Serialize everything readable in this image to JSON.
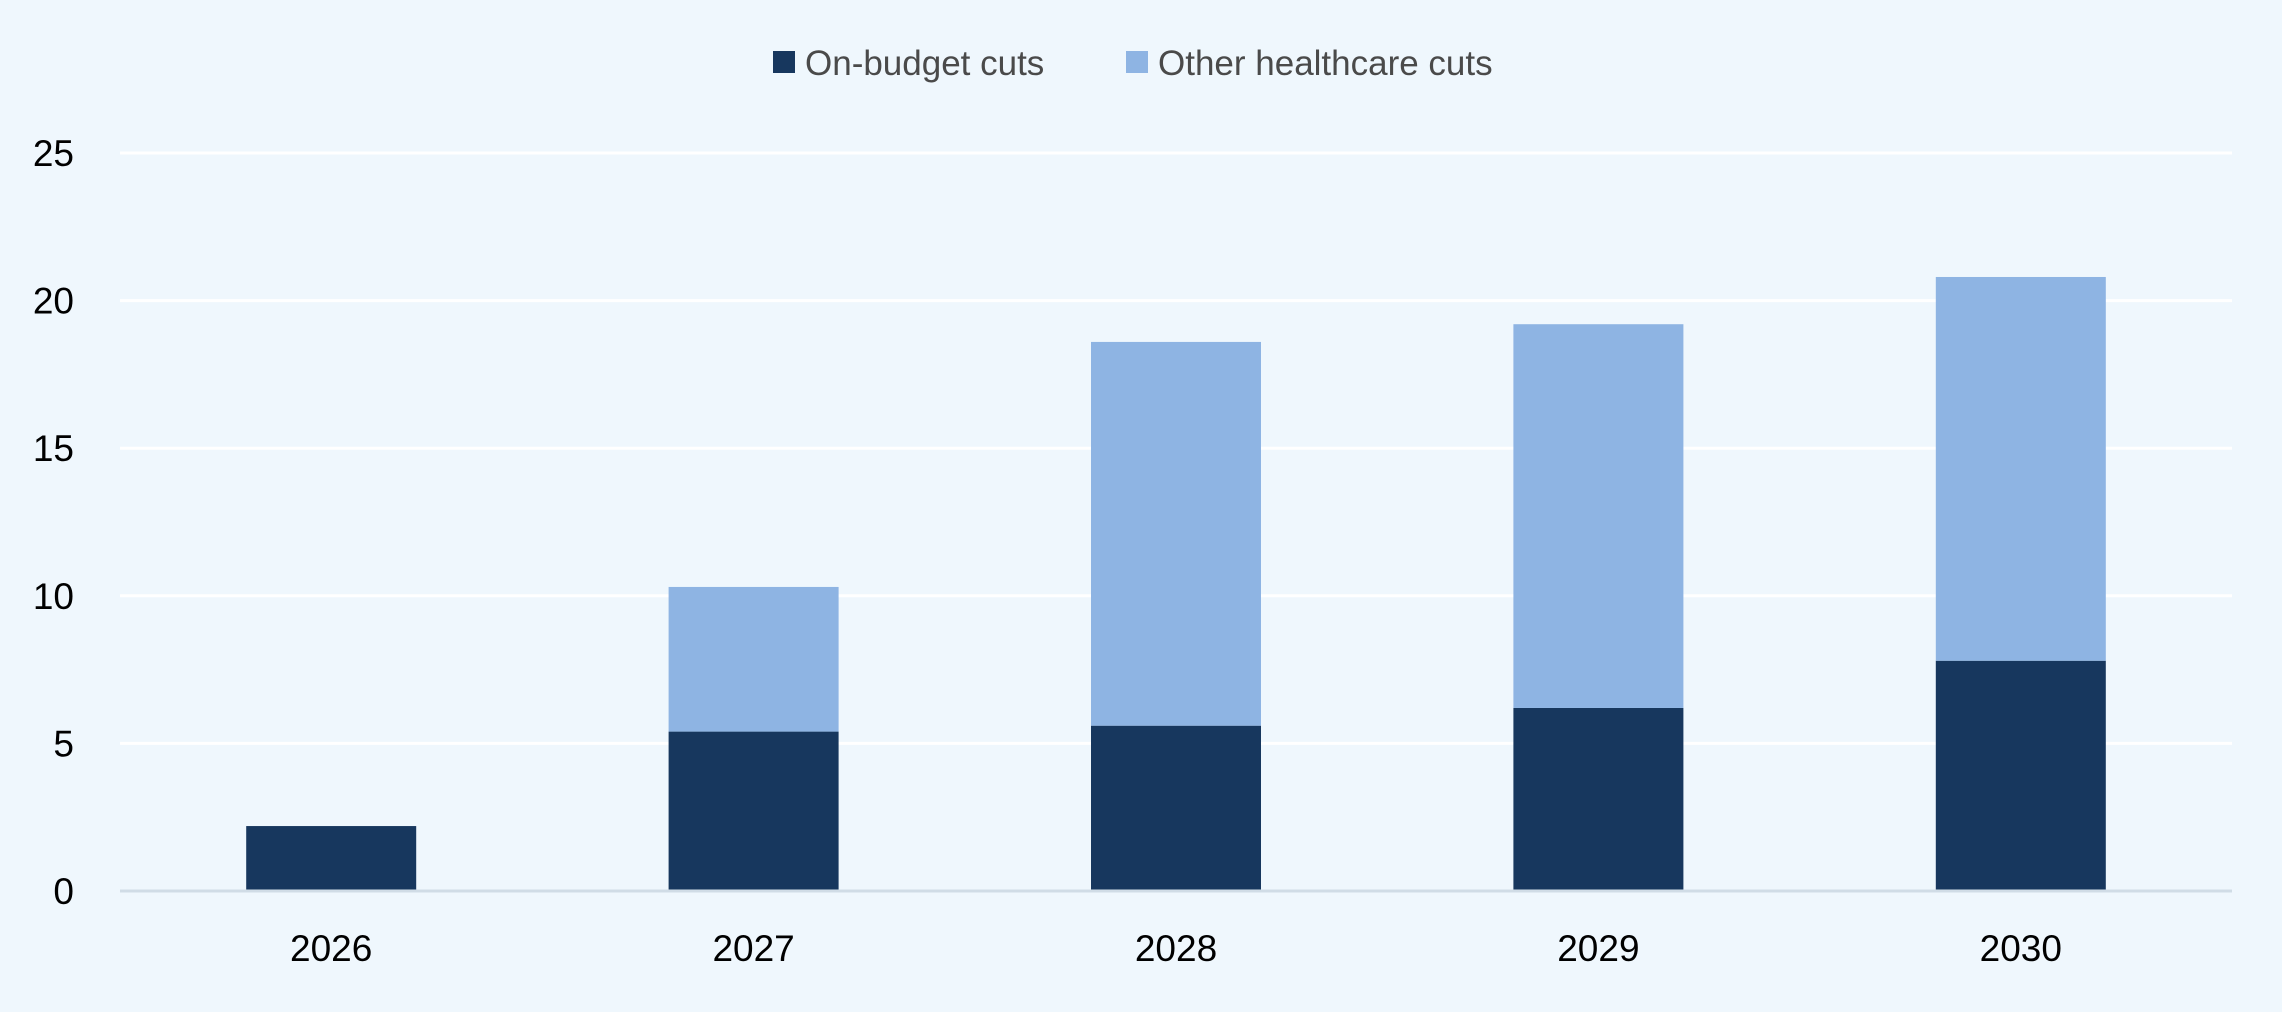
{
  "chart_data": {
    "type": "bar",
    "stacked": true,
    "categories": [
      "2026",
      "2027",
      "2028",
      "2029",
      "2030"
    ],
    "series": [
      {
        "name": "On-budget cuts",
        "values": [
          2.2,
          5.4,
          5.6,
          6.2,
          7.8
        ],
        "color": "#17375e"
      },
      {
        "name": "Other healthcare cuts",
        "values": [
          0,
          4.9,
          13.0,
          13.0,
          13.0
        ],
        "color": "#8eb4e3"
      }
    ],
    "yticks": [
      "0",
      "5",
      "10",
      "15",
      "20",
      "25"
    ],
    "ylim": [
      0,
      25
    ],
    "grid": true,
    "legend_position": "top-center",
    "background_color": "#eff7fd",
    "gridline_color": "#ffffff",
    "axis_color": "#d0dce6"
  }
}
